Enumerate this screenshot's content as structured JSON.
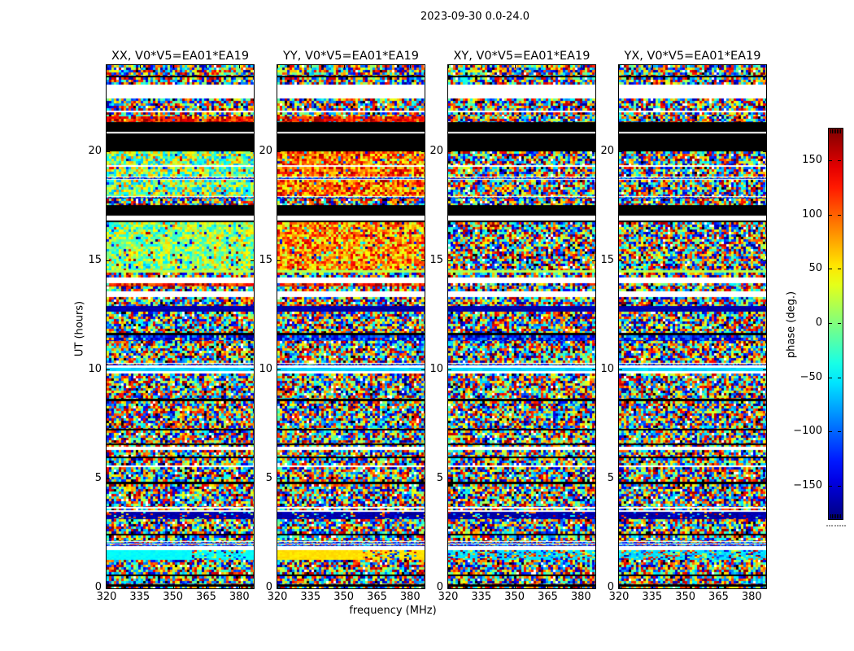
{
  "figure": {
    "title": "2023-09-30 0.0-24.0",
    "colors": {
      "background": "#ffffff",
      "frame": "#000000",
      "text": "#000000"
    }
  },
  "chart_data": {
    "type": "heatmap",
    "title": "2023-09-30 0.0-24.0",
    "xlabel": "frequency (MHz)",
    "ylabel": "UT (hours)",
    "colorbar_label": "phase (deg.)",
    "colormap": "jet",
    "value_range_deg": [
      -180,
      180
    ],
    "x_range_mhz": [
      320,
      386.5
    ],
    "x_tick_labels": [
      "320",
      "335",
      "350",
      "365",
      "380"
    ],
    "x_tick_values": [
      320,
      335,
      350,
      365,
      380
    ],
    "y_range_hours": [
      0,
      24
    ],
    "y_tick_labels": [
      "0",
      "5",
      "10",
      "15",
      "20"
    ],
    "y_tick_values": [
      0,
      5,
      10,
      15,
      20
    ],
    "colorbar_tick_labels": [
      "150",
      "100",
      "50",
      "0",
      "−50",
      "−100",
      "−150"
    ],
    "colorbar_tick_values": [
      150,
      100,
      50,
      0,
      -50,
      -100,
      -150
    ],
    "legend_position": "right-colorbar",
    "grid": false,
    "panels": [
      {
        "id": "xx",
        "title": "XX, V0*V5=EA01*EA19",
        "tints": {
          "t1": [
            80,
            180
          ],
          "t2": [
            -80,
            85
          ],
          "t3": [
            -55,
            65
          ],
          "s2": -45,
          "s2_noisy": false
        }
      },
      {
        "id": "yy",
        "title": "YY, V0*V5=EA01*EA19",
        "tints": {
          "t1": [
            80,
            180
          ],
          "t2": [
            25,
            170
          ],
          "t3": [
            15,
            150
          ],
          "s2": 55,
          "s2_noisy": false
        }
      },
      {
        "id": "xy",
        "title": "XY, V0*V5=EA01*EA19",
        "tints": {
          "t1": null,
          "t2": null,
          "t3": null,
          "s2": -55,
          "s2_noisy": true
        }
      },
      {
        "id": "yx",
        "title": "YX, V0*V5=EA01*EA19",
        "tints": {
          "t1": null,
          "t2": null,
          "t3": null,
          "s2": -55,
          "s2_noisy": true
        }
      }
    ],
    "band_types_legend": {
      "n": "random phase noise (full -180..180 range)",
      "b": "flagged black rows",
      "w": "flagged white gap rows",
      "l": "fine horizontal stripe rows",
      "t1": "red-biased noise rows (XX/YY only)",
      "t2": "calibrated tinted noise band UT~17.5-19.5 (green in XX, orange in YY)",
      "t3": "calibrated tinted noise band UT~14.5-16.8 (green in XX, orange in YY)",
      "lg": "bright green thin line",
      "s1": "smooth dark-blue band",
      "nb": "blue-biased noise rows",
      "nb2": "dark-blue noisy band UT~3.2",
      "sc": "smooth cyan band at UT 10",
      "s2": "smooth band UT~1.4 (cyan in XX, yellow in YY, noisy cyan in XY/YX)"
    },
    "time_bands": [
      [
        13,
        "n"
      ],
      [
        2,
        "b"
      ],
      [
        9,
        "n"
      ],
      [
        17,
        "w"
      ],
      [
        15,
        "n"
      ],
      [
        2,
        "w"
      ],
      [
        5,
        "n"
      ],
      [
        7,
        "t1"
      ],
      [
        12,
        "b"
      ],
      [
        2,
        "w"
      ],
      [
        22,
        "b"
      ],
      [
        17,
        "t2"
      ],
      [
        2,
        "w"
      ],
      [
        12,
        "t2"
      ],
      [
        4,
        "l"
      ],
      [
        20,
        "t2"
      ],
      [
        3,
        "l"
      ],
      [
        8,
        "n"
      ],
      [
        13,
        "b"
      ],
      [
        6,
        "w"
      ],
      [
        2,
        "b"
      ],
      [
        59,
        "t3"
      ],
      [
        3,
        "lg"
      ],
      [
        6,
        "n"
      ],
      [
        7,
        "w"
      ],
      [
        4,
        "t1"
      ],
      [
        6,
        "n"
      ],
      [
        7,
        "w"
      ],
      [
        11,
        "n"
      ],
      [
        7,
        "s1"
      ],
      [
        26,
        "n"
      ],
      [
        3,
        "b"
      ],
      [
        7,
        "nb"
      ],
      [
        27,
        "n"
      ],
      [
        3,
        "l"
      ],
      [
        3,
        "w"
      ],
      [
        4,
        "sc"
      ],
      [
        3,
        "w"
      ],
      [
        31,
        "n"
      ],
      [
        3,
        "b"
      ],
      [
        34,
        "n"
      ],
      [
        2,
        "b"
      ],
      [
        16,
        "n"
      ],
      [
        2,
        "b"
      ],
      [
        2,
        "n"
      ],
      [
        4,
        "w"
      ],
      [
        8,
        "n"
      ],
      [
        2,
        "b"
      ],
      [
        9,
        "n"
      ],
      [
        2,
        "w"
      ],
      [
        18,
        "n"
      ],
      [
        3,
        "b"
      ],
      [
        28,
        "n"
      ],
      [
        2,
        "w"
      ],
      [
        2,
        "n"
      ],
      [
        2,
        "w"
      ],
      [
        9,
        "nb2"
      ],
      [
        18,
        "n"
      ],
      [
        2,
        "b"
      ],
      [
        7,
        "n"
      ],
      [
        7,
        "l"
      ],
      [
        4,
        "w"
      ],
      [
        12,
        "s2"
      ],
      [
        18,
        "n"
      ],
      [
        2,
        "b"
      ],
      [
        10,
        "n"
      ],
      [
        3,
        "b"
      ],
      [
        2,
        "n"
      ]
    ]
  }
}
